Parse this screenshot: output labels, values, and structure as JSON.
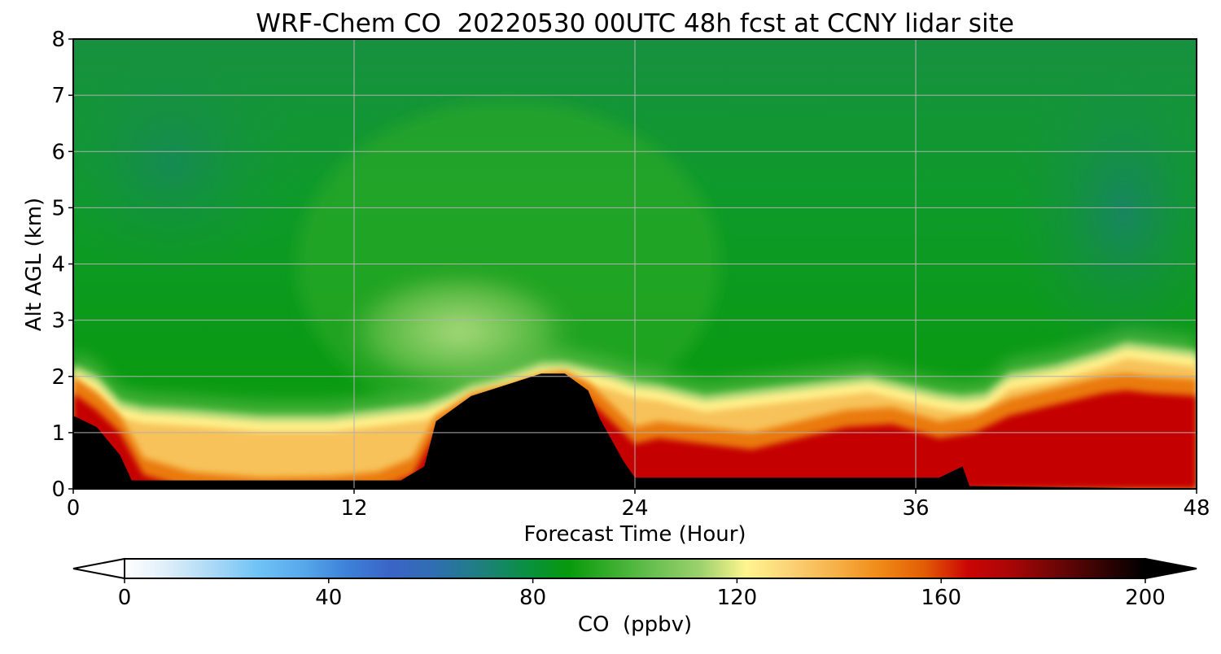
{
  "chart_data": {
    "type": "heatmap",
    "title": "WRF-Chem CO  20220530 00UTC 48h fcst at CCNY lidar site",
    "xlabel": "Forecast Time (Hour)",
    "ylabel": "Alt AGL (km)",
    "xlim": [
      0,
      48
    ],
    "ylim": [
      0,
      8
    ],
    "xticks": [
      0,
      12,
      24,
      36,
      48
    ],
    "yticks": [
      0,
      1,
      2,
      3,
      4,
      5,
      6,
      7,
      8
    ],
    "grid": true,
    "colorbar": {
      "label": "CO  (ppbv)",
      "vmin": 0,
      "vmax": 200,
      "ticks": [
        0,
        40,
        80,
        120,
        160,
        200
      ],
      "extend": "both",
      "levels": 51,
      "colors": [
        "#ffffff",
        "#dcedf9",
        "#aad8f6",
        "#6fc3f6",
        "#57a9eb",
        "#3d82d8",
        "#3a64c7",
        "#2f6eb0",
        "#1f7f80",
        "#0a8f45",
        "#079a0c",
        "#3aae2e",
        "#6dc153",
        "#9ed26e",
        "#fff58f",
        "#fbd276",
        "#f6b24a",
        "#f08b17",
        "#e25e05",
        "#cc0505",
        "#a80606",
        "#6d0606",
        "#360303",
        "#000000"
      ]
    },
    "layers": {
      "boundary_layer_top_km": {
        "x": [
          0,
          1,
          2,
          3,
          5,
          8,
          11,
          13,
          15,
          16,
          17,
          18,
          19,
          20,
          21,
          22,
          23,
          24,
          25,
          27,
          29,
          31,
          33,
          34,
          35,
          37,
          38,
          39,
          40,
          42,
          44,
          45,
          46,
          48
        ],
        "y": [
          2.1,
          1.9,
          1.45,
          1.35,
          1.3,
          1.2,
          1.2,
          1.3,
          1.4,
          1.55,
          1.75,
          1.85,
          2.0,
          2.15,
          2.15,
          2.05,
          1.95,
          1.8,
          1.75,
          1.55,
          1.65,
          1.75,
          1.85,
          1.9,
          1.8,
          1.6,
          1.55,
          1.6,
          1.95,
          2.1,
          2.35,
          2.5,
          2.45,
          2.35
        ]
      },
      "polluted_layer_top_km": {
        "x": [
          0,
          1,
          2,
          3,
          5,
          8,
          11,
          13,
          14.5,
          15.5,
          17,
          18.5,
          20,
          21,
          22,
          23,
          24,
          25,
          27,
          29,
          31,
          33,
          35,
          37,
          38.5,
          40,
          42,
          44,
          45,
          46,
          48
        ],
        "y": [
          2.0,
          1.7,
          1.3,
          0.55,
          0.3,
          0.2,
          0.22,
          0.3,
          0.55,
          1.3,
          1.7,
          1.85,
          2.05,
          2.1,
          1.9,
          1.5,
          1.1,
          1.2,
          1.1,
          1.0,
          1.2,
          1.4,
          1.45,
          1.2,
          1.3,
          1.6,
          1.8,
          2.0,
          2.05,
          2.0,
          1.95
        ]
      },
      "dense_core_top_km": {
        "x": [
          0,
          1,
          2,
          2.5,
          14,
          15,
          15.5,
          17,
          18.5,
          20,
          21,
          22,
          22.5,
          23.5,
          24,
          37,
          38,
          38.3
        ],
        "y": [
          1.3,
          1.1,
          0.6,
          0.15,
          0.15,
          0.4,
          1.2,
          1.65,
          1.85,
          2.05,
          2.05,
          1.75,
          1.25,
          0.5,
          0.2,
          0.2,
          0.4,
          0.05
        ]
      },
      "enhanced_aloft_plume": {
        "center_x": 16.5,
        "center_y": 2.8,
        "peak_ppbv": 92
      },
      "clean_free_troposphere_ppbv": 68
    }
  },
  "colors": {
    "background": "#ffffff",
    "axis": "#000000",
    "grid": "#b0b0b0"
  }
}
